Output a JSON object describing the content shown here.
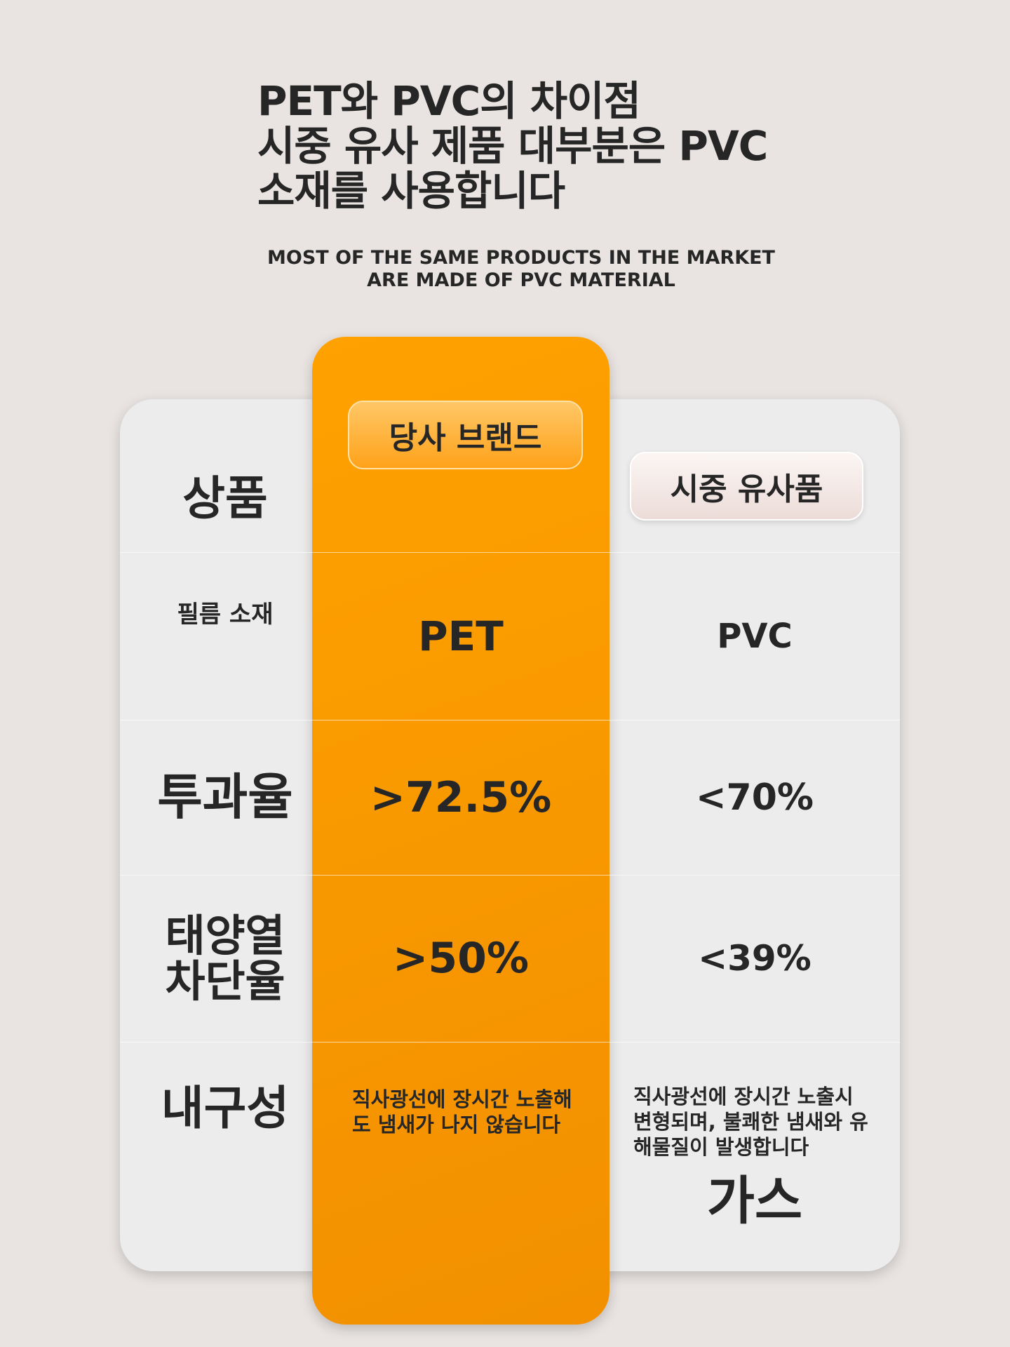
{
  "header": {
    "title_lines": [
      "PET와 PVC의 차이점",
      "시중 유사 제품 대부분은 PVC",
      "소재를 사용합니다"
    ],
    "subtitle_lines": [
      "MOST OF THE SAME PRODUCTS IN THE MARKET",
      "ARE MADE OF PVC MATERIAL"
    ]
  },
  "table": {
    "header": {
      "label": "상품",
      "ours": "당사 브랜드",
      "theirs": "시중 유사품"
    },
    "rows": [
      {
        "label_lines": [
          "필름 소재"
        ],
        "ours": "PET",
        "theirs": "PVC"
      },
      {
        "label_lines": [
          "투과율"
        ],
        "ours": ">72.5%",
        "theirs": "<70%"
      },
      {
        "label_lines": [
          "태양열",
          "차단율"
        ],
        "ours": ">50%",
        "theirs": "<39%"
      },
      {
        "label_lines": [
          "내구성"
        ],
        "ours": "직사광선에 장시간 노출해도 냄새가 나지 않습니다",
        "theirs": "직사광선에 장시간 노출시 변형되며, 불쾌한 냄새와 유해물질이 발생합니다",
        "theirs_extra": "가스"
      }
    ]
  }
}
